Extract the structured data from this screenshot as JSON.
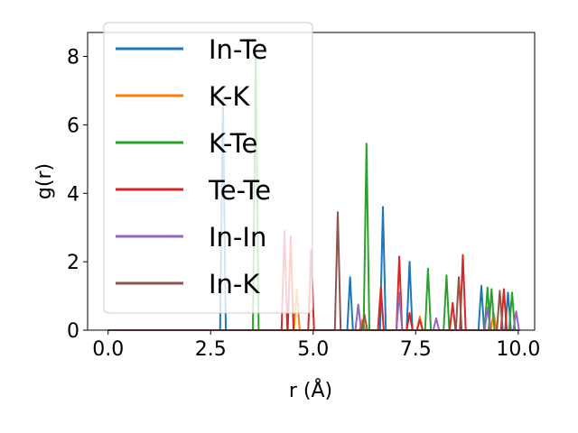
{
  "chart_data": {
    "type": "line",
    "title": "",
    "xlabel": "r (Å)",
    "ylabel": "g(r)",
    "xlim": [
      -0.5,
      10.4
    ],
    "ylim": [
      0,
      8.7
    ],
    "xticks": [
      0.0,
      2.5,
      5.0,
      7.5,
      10.0
    ],
    "xtick_labels": [
      "0.0",
      "2.5",
      "5.0",
      "7.5",
      "10.0"
    ],
    "yticks": [
      0,
      2,
      4,
      6,
      8
    ],
    "ytick_labels": [
      "0",
      "2",
      "4",
      "6",
      "8"
    ],
    "grid": false,
    "legend_position": "upper-left",
    "series": [
      {
        "name": "In-Te",
        "color": "#1f77b4",
        "peaks": [
          [
            2.8,
            6.8
          ],
          [
            5.9,
            1.55
          ],
          [
            6.7,
            3.6
          ],
          [
            7.35,
            2.0
          ],
          [
            9.1,
            1.3
          ],
          [
            9.75,
            1.1
          ]
        ]
      },
      {
        "name": "K-K",
        "color": "#ff7f0e",
        "peaks": [
          [
            4.6,
            1.2
          ],
          [
            6.2,
            0.3
          ],
          [
            7.6,
            0.4
          ],
          [
            9.4,
            0.5
          ]
        ]
      },
      {
        "name": "K-Te",
        "color": "#2ca02c",
        "peaks": [
          [
            3.6,
            8.1
          ],
          [
            6.3,
            5.45
          ],
          [
            7.8,
            1.8
          ],
          [
            8.25,
            1.6
          ],
          [
            9.25,
            1.25
          ],
          [
            9.35,
            1.2
          ],
          [
            9.85,
            1.1
          ]
        ]
      },
      {
        "name": "Te-Te",
        "color": "#d62728",
        "peaks": [
          [
            4.3,
            2.9
          ],
          [
            4.45,
            2.75
          ],
          [
            4.95,
            2.35
          ],
          [
            6.65,
            1.25
          ],
          [
            7.1,
            2.15
          ],
          [
            7.35,
            0.5
          ],
          [
            7.6,
            0.3
          ],
          [
            8.4,
            0.8
          ],
          [
            8.65,
            2.2
          ],
          [
            9.65,
            1.2
          ]
        ]
      },
      {
        "name": "In-In",
        "color": "#9467bd",
        "peaks": [
          [
            6.1,
            0.75
          ],
          [
            7.1,
            1.1
          ],
          [
            8.0,
            0.35
          ],
          [
            9.25,
            0.65
          ],
          [
            9.95,
            0.55
          ]
        ]
      },
      {
        "name": "In-K",
        "color": "#8c564b",
        "peaks": [
          [
            5.6,
            3.45
          ],
          [
            6.25,
            0.45
          ],
          [
            8.55,
            1.55
          ],
          [
            9.55,
            1.15
          ]
        ]
      }
    ]
  }
}
